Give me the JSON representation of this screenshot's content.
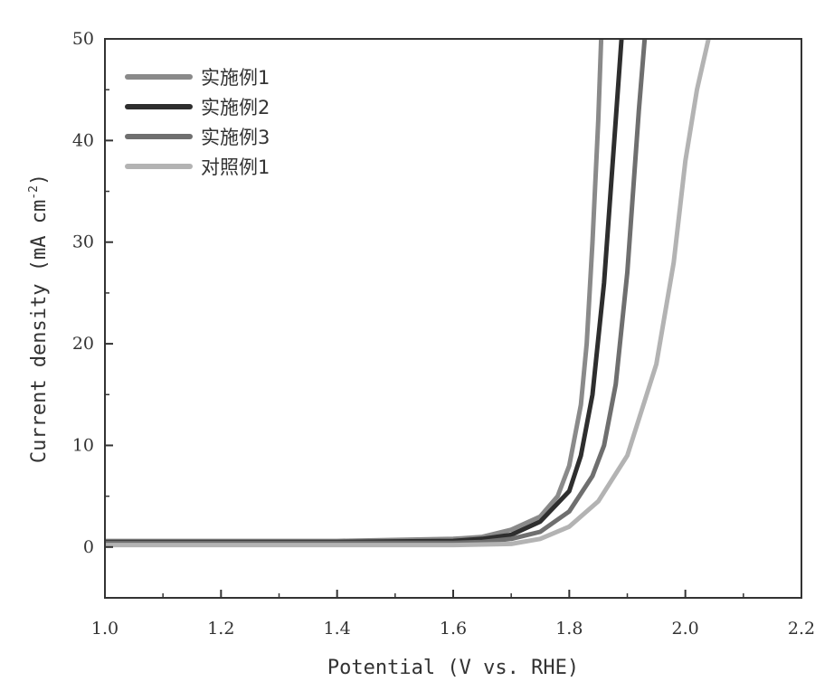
{
  "chart_data": {
    "type": "line",
    "xlabel": "Potential (V vs. RHE)",
    "ylabel": "Current density (mA cm",
    "ylabel_sup": "-2",
    "ylabel_end": ")",
    "xlim": [
      1.0,
      2.2
    ],
    "ylim": [
      -5,
      50
    ],
    "xticks": [
      "1.0",
      "1.2",
      "1.4",
      "1.6",
      "1.8",
      "2.0",
      "2.2"
    ],
    "yticks": [
      "0",
      "10",
      "20",
      "30",
      "40",
      "50"
    ],
    "legend_position": "top-left",
    "series": [
      {
        "name": "实施例1",
        "color": "#8a8a8a",
        "points": [
          [
            1.0,
            0.6
          ],
          [
            1.2,
            0.6
          ],
          [
            1.4,
            0.6
          ],
          [
            1.6,
            0.8
          ],
          [
            1.65,
            1.0
          ],
          [
            1.7,
            1.7
          ],
          [
            1.75,
            3.0
          ],
          [
            1.78,
            5.0
          ],
          [
            1.8,
            8.0
          ],
          [
            1.82,
            14.0
          ],
          [
            1.83,
            20.0
          ],
          [
            1.84,
            30.0
          ],
          [
            1.85,
            42.0
          ],
          [
            1.855,
            50.0
          ]
        ]
      },
      {
        "name": "实施例2",
        "color": "#2e2e2e",
        "points": [
          [
            1.0,
            0.5
          ],
          [
            1.2,
            0.5
          ],
          [
            1.4,
            0.5
          ],
          [
            1.6,
            0.6
          ],
          [
            1.65,
            0.8
          ],
          [
            1.7,
            1.2
          ],
          [
            1.75,
            2.5
          ],
          [
            1.8,
            5.5
          ],
          [
            1.82,
            9.0
          ],
          [
            1.84,
            15.0
          ],
          [
            1.86,
            26.0
          ],
          [
            1.88,
            42.0
          ],
          [
            1.89,
            50.0
          ]
        ]
      },
      {
        "name": "实施例3",
        "color": "#6f6f6f",
        "points": [
          [
            1.0,
            0.4
          ],
          [
            1.2,
            0.4
          ],
          [
            1.4,
            0.4
          ],
          [
            1.6,
            0.4
          ],
          [
            1.65,
            0.5
          ],
          [
            1.7,
            0.8
          ],
          [
            1.75,
            1.5
          ],
          [
            1.8,
            3.5
          ],
          [
            1.84,
            7.0
          ],
          [
            1.86,
            10.0
          ],
          [
            1.88,
            16.0
          ],
          [
            1.9,
            27.0
          ],
          [
            1.92,
            43.0
          ],
          [
            1.93,
            50.0
          ]
        ]
      },
      {
        "name": "对照例1",
        "color": "#b3b3b3",
        "points": [
          [
            1.0,
            0.2
          ],
          [
            1.2,
            0.2
          ],
          [
            1.4,
            0.2
          ],
          [
            1.6,
            0.2
          ],
          [
            1.7,
            0.3
          ],
          [
            1.75,
            0.8
          ],
          [
            1.8,
            2.0
          ],
          [
            1.85,
            4.5
          ],
          [
            1.9,
            9.0
          ],
          [
            1.95,
            18.0
          ],
          [
            1.98,
            28.0
          ],
          [
            2.0,
            38.0
          ],
          [
            2.02,
            45.0
          ],
          [
            2.04,
            50.0
          ]
        ]
      }
    ]
  }
}
